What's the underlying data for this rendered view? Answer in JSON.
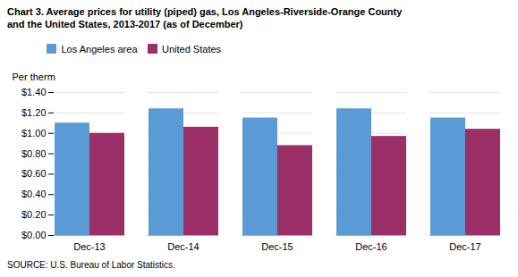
{
  "chart_data": {
    "type": "bar",
    "title": "Chart 3. Average prices for utility (piped) gas, Los Angeles-Riverside-Orange County\nand the United States, 2013-2017  (as of December)",
    "ylabel": "Per therm",
    "caption": "SOURCE: U.S. Bureau of Labor Statistics.",
    "categories": [
      "Dec-13",
      "Dec-14",
      "Dec-15",
      "Dec-16",
      "Dec-17"
    ],
    "series": [
      {
        "name": "Los Angeles area",
        "color": "#5B9BD5",
        "values": [
          1.1,
          1.24,
          1.15,
          1.24,
          1.15
        ]
      },
      {
        "name": "United States",
        "color": "#9B3068",
        "values": [
          1.0,
          1.06,
          0.88,
          0.97,
          1.04
        ]
      }
    ],
    "ylim": [
      0,
      1.4
    ],
    "yticks": [
      {
        "value": 0.0,
        "label": "$0.00"
      },
      {
        "value": 0.2,
        "label": "$0.20"
      },
      {
        "value": 0.4,
        "label": "$0.40"
      },
      {
        "value": 0.6,
        "label": "$0.60"
      },
      {
        "value": 0.8,
        "label": "$0.80"
      },
      {
        "value": 1.0,
        "label": "$1.00"
      },
      {
        "value": 1.2,
        "label": "$1.20"
      },
      {
        "value": 1.4,
        "label": "$1.40"
      }
    ],
    "grid": true,
    "legend": "upper left"
  }
}
